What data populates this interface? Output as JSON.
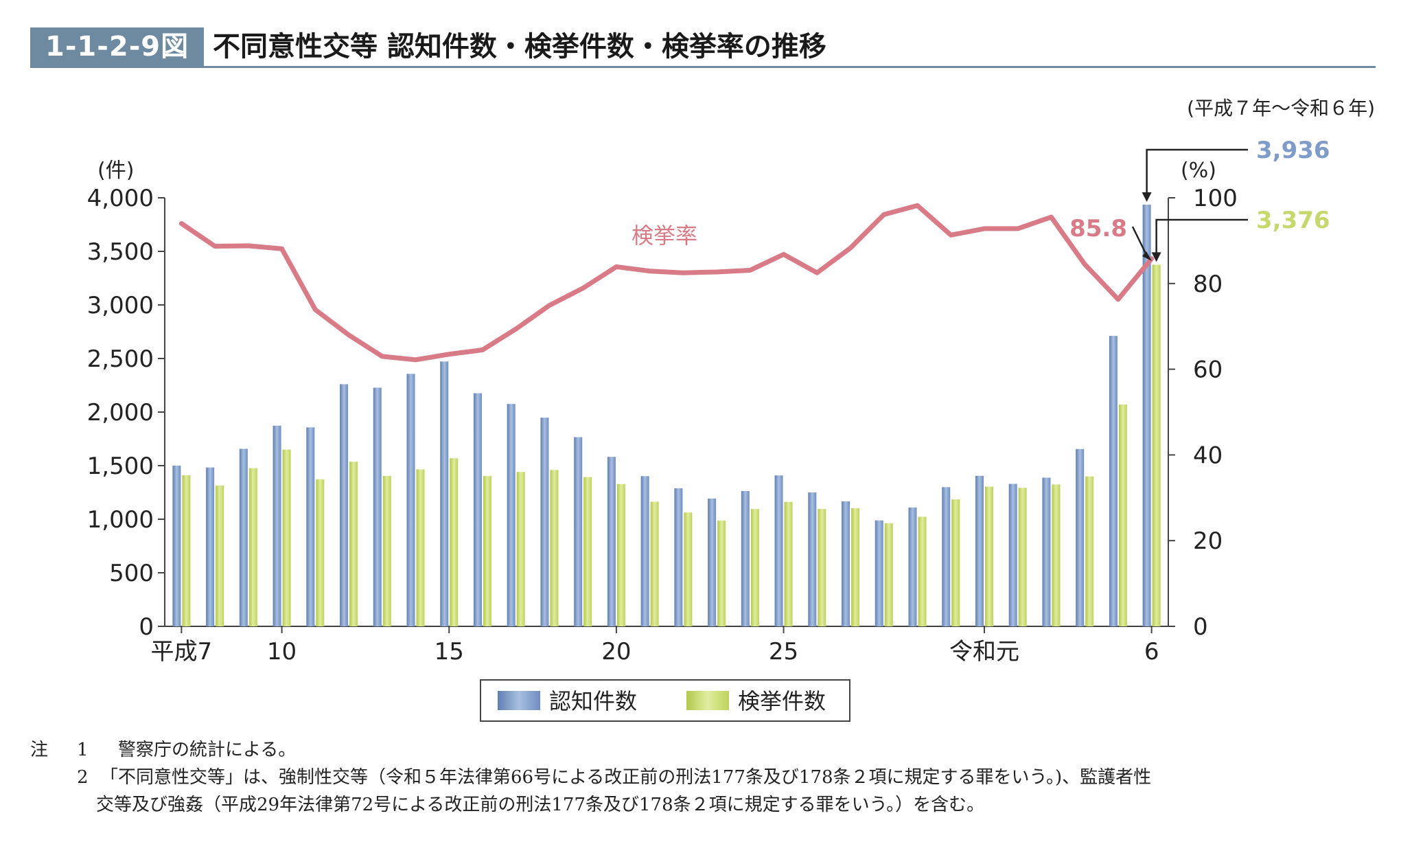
{
  "figure": {
    "number": "1-1-2-9図",
    "title": "不同意性交等 認知件数・検挙件数・検挙率の推移",
    "period": "(平成７年～令和６年)"
  },
  "chart_data": {
    "type": "bar",
    "combo_line": true,
    "x_tick_labels": [
      {
        "index": 0,
        "label": "平成7"
      },
      {
        "index": 3,
        "label": "10"
      },
      {
        "index": 8,
        "label": "15"
      },
      {
        "index": 13,
        "label": "20"
      },
      {
        "index": 18,
        "label": "25"
      },
      {
        "index": 24,
        "label": "令和元"
      },
      {
        "index": 29,
        "label": "6"
      }
    ],
    "left_axis": {
      "unit": "(件)",
      "ylim": [
        0,
        4000
      ],
      "ticks": [
        "0",
        "500",
        "1,000",
        "1,500",
        "2,000",
        "2,500",
        "3,000",
        "3,500",
        "4,000"
      ]
    },
    "right_axis": {
      "unit": "(%)",
      "ylim": [
        0,
        100
      ],
      "ticks": [
        "0",
        "20",
        "40",
        "60",
        "80",
        "100"
      ]
    },
    "series": [
      {
        "name": "認知件数",
        "color": "#7f9cc9",
        "axis": "left",
        "values": [
          1500,
          1483,
          1657,
          1873,
          1857,
          2260,
          2228,
          2357,
          2472,
          2176,
          2076,
          1948,
          1766,
          1582,
          1402,
          1289,
          1193,
          1263,
          1409,
          1250,
          1167,
          989,
          1109,
          1299,
          1405,
          1330,
          1388,
          1655,
          2711,
          3936
        ]
      },
      {
        "name": "検挙件数",
        "color": "#c5d86d",
        "axis": "left",
        "values": [
          1410,
          1315,
          1476,
          1650,
          1372,
          1537,
          1404,
          1465,
          1569,
          1403,
          1441,
          1460,
          1394,
          1328,
          1163,
          1063,
          987,
          1095,
          1162,
          1096,
          1103,
          962,
          1023,
          1185,
          1304,
          1293,
          1325,
          1399,
          2070,
          3376
        ]
      },
      {
        "name": "検挙率",
        "color": "#d97b86",
        "axis": "right",
        "values": [
          94.0,
          88.7,
          88.8,
          88.1,
          73.9,
          68.0,
          63.0,
          62.2,
          63.5,
          64.5,
          69.4,
          74.9,
          78.9,
          83.9,
          82.9,
          82.5,
          82.7,
          83.1,
          86.8,
          82.5,
          88.3,
          96.1,
          98.2,
          91.3,
          92.8,
          92.8,
          95.5,
          84.5,
          76.3,
          85.8
        ]
      }
    ],
    "line_label": "検挙率",
    "annotations": {
      "rate_last": "85.8",
      "recognized_last": "3,936",
      "cleared_last": "3,376"
    },
    "legend": {
      "placement": "bottom-center",
      "entries": [
        "認知件数",
        "検挙件数"
      ]
    }
  },
  "notes": {
    "head": "注",
    "items": [
      {
        "num": "1",
        "text": "警察庁の統計による。"
      },
      {
        "num": "2",
        "text": "「不同意性交等」は、強制性交等（令和５年法律第66号による改正前の刑法177条及び178条２項に規定する罪をいう。)、監護者性"
      }
    ],
    "continuation": "交等及び強姦（平成29年法律第72号による改正前の刑法177条及び178条２項に規定する罪をいう。）を含む。"
  }
}
